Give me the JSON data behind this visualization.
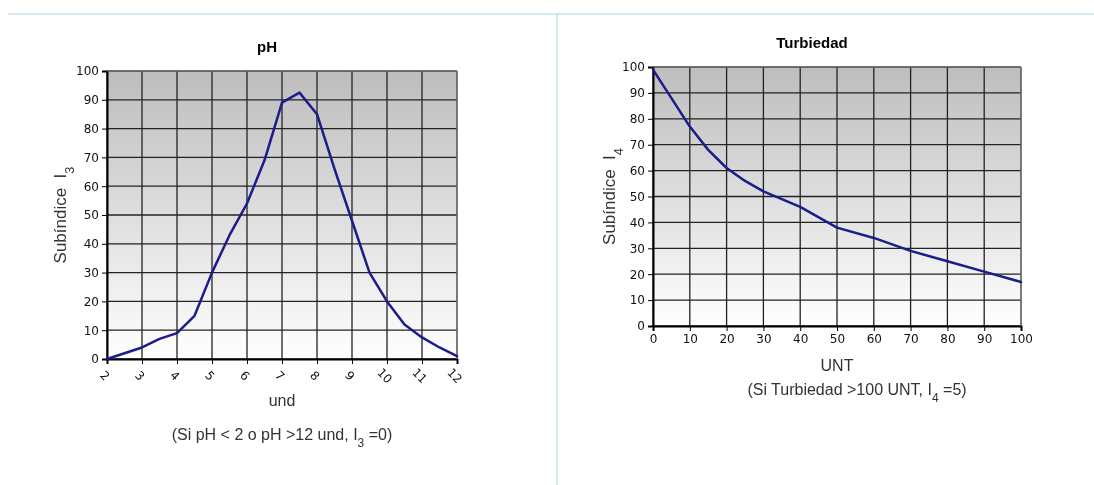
{
  "chart_data": [
    {
      "type": "line",
      "title": "pH",
      "xlabel": "und",
      "ylabel": "Subíndice  I$_{3}$",
      "annotations": [
        "(Si pH < 2 o pH >12 und, I$_{3}$ =0)"
      ],
      "x": [
        2,
        2.5,
        3,
        3.5,
        4,
        4.5,
        5,
        5.5,
        6,
        6.5,
        7,
        7.5,
        8,
        8.5,
        9,
        9.5,
        10,
        10.5,
        11,
        11.5,
        12
      ],
      "series": [
        {
          "color": "#1c1c8a",
          "values": [
            0,
            2,
            4,
            7,
            9,
            15,
            30,
            43,
            54,
            69,
            89,
            92.5,
            85,
            66,
            48,
            30,
            20,
            12,
            7.5,
            4,
            1
          ]
        }
      ],
      "xlim": [
        2,
        12
      ],
      "xticks": [
        2,
        3,
        4,
        5,
        6,
        7,
        8,
        9,
        10,
        11,
        12
      ],
      "ylim": [
        0,
        100
      ],
      "yticks": [
        0,
        10,
        20,
        30,
        40,
        50,
        60,
        70,
        80,
        90,
        100
      ],
      "grid": true,
      "marker": "none",
      "line_style": "solid"
    },
    {
      "type": "line",
      "title": "Turbiedad",
      "xlabel": "UNT",
      "ylabel": "Subíndice  I$_{4}$",
      "annotations": [
        "(Si Turbiedad >100 UNT, I$_{4}$ =5)"
      ],
      "x": [
        0,
        5,
        10,
        15,
        20,
        25,
        30,
        40,
        50,
        60,
        70,
        80,
        90,
        100
      ],
      "series": [
        {
          "color": "#1c1c8a",
          "values": [
            99,
            88,
            77,
            68,
            61,
            56,
            52,
            46,
            38,
            34,
            29,
            25,
            21,
            17
          ]
        }
      ],
      "xlim": [
        0,
        100
      ],
      "xticks": [
        0,
        10,
        20,
        30,
        40,
        50,
        60,
        70,
        80,
        90,
        100
      ],
      "ylim": [
        0,
        100
      ],
      "yticks": [
        0,
        10,
        20,
        30,
        40,
        50,
        60,
        70,
        80,
        90,
        100
      ],
      "grid": true,
      "marker": "none",
      "line_style": "solid"
    }
  ]
}
